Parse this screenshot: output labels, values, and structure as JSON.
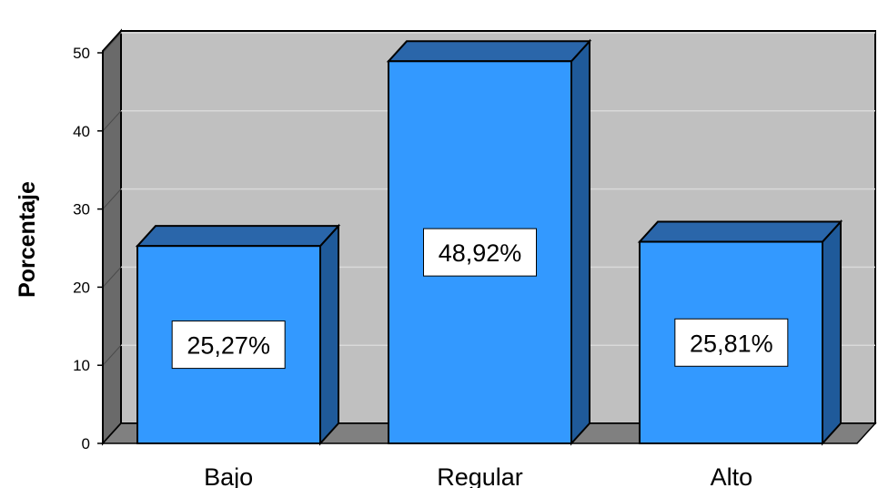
{
  "chart_data": {
    "type": "bar",
    "categories": [
      "Bajo",
      "Regular",
      "Alto"
    ],
    "values": [
      25.27,
      48.92,
      25.81
    ],
    "data_labels": [
      "25,27%",
      "48,92%",
      "25,81%"
    ],
    "title": "",
    "xlabel": "",
    "ylabel": "Porcentaje",
    "ylim": [
      0,
      50
    ],
    "yticks": [
      0,
      10,
      20,
      30,
      40,
      50
    ],
    "grid": true,
    "style": "3d",
    "colors": {
      "bar_front": "#3399ff",
      "bar_top": "#2a66aa",
      "bar_side": "#1f5a9a",
      "plot_back": "#c0c0c0",
      "plot_floor": "#808080",
      "plot_wall": "#6a6a6a",
      "gridline": "#d9d9d9"
    }
  }
}
